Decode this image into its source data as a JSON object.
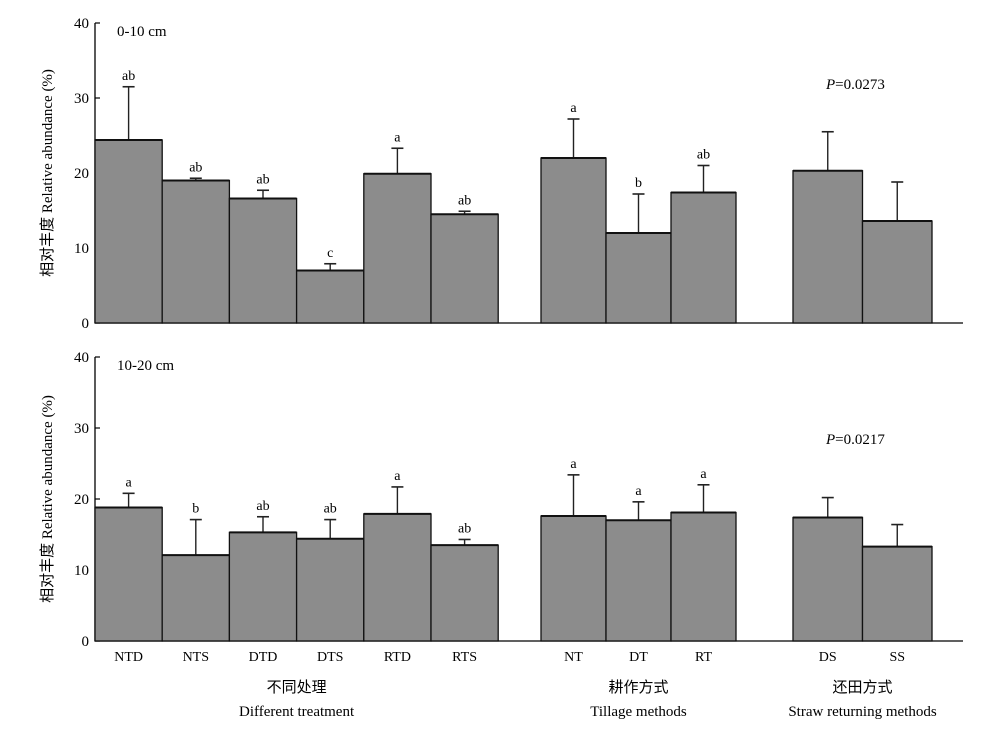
{
  "chart_data": [
    {
      "type": "bar",
      "panel_label": "0-10 cm",
      "ylabel": "相对丰度 Relative abundance (%)",
      "ylim": [
        0,
        40
      ],
      "yticks": [
        0,
        10,
        20,
        30,
        40
      ],
      "p_prefix": "P",
      "p_value": "=0.0273",
      "groups": [
        {
          "name_cn": "不同处理",
          "name_en": "Different treatment",
          "categories": [
            "NTD",
            "NTS",
            "DTD",
            "DTS",
            "RTD",
            "RTS"
          ],
          "values": [
            24.4,
            19.0,
            16.6,
            7.0,
            19.9,
            14.5
          ],
          "error": [
            7.1,
            0.3,
            1.1,
            0.9,
            3.4,
            0.4
          ],
          "letters": [
            "ab",
            "ab",
            "ab",
            "c",
            "a",
            "ab"
          ]
        },
        {
          "name_cn": "耕作方式",
          "name_en": "Tillage methods",
          "categories": [
            "NT",
            "DT",
            "RT"
          ],
          "values": [
            22.0,
            12.0,
            17.4
          ],
          "error": [
            5.2,
            5.2,
            3.6
          ],
          "letters": [
            "a",
            "b",
            "ab"
          ]
        },
        {
          "name_cn": "还田方式",
          "name_en": "Straw returning methods",
          "categories": [
            "DS",
            "SS"
          ],
          "values": [
            20.3,
            13.6
          ],
          "error": [
            5.2,
            5.2
          ],
          "letters": [
            "",
            ""
          ]
        }
      ]
    },
    {
      "type": "bar",
      "panel_label": "10-20 cm",
      "ylabel": "相对丰度 Relative abundance (%)",
      "ylim": [
        0,
        40
      ],
      "yticks": [
        0,
        10,
        20,
        30,
        40
      ],
      "p_prefix": "P",
      "p_value": "=0.0217",
      "groups": [
        {
          "name_cn": "不同处理",
          "name_en": "Different treatment",
          "categories": [
            "NTD",
            "NTS",
            "DTD",
            "DTS",
            "RTD",
            "RTS"
          ],
          "values": [
            18.8,
            12.1,
            15.3,
            14.4,
            17.9,
            13.5
          ],
          "error": [
            2.0,
            5.0,
            2.2,
            2.7,
            3.8,
            0.8
          ],
          "letters": [
            "a",
            "b",
            "ab",
            "ab",
            "a",
            "ab"
          ]
        },
        {
          "name_cn": "耕作方式",
          "name_en": "Tillage methods",
          "categories": [
            "NT",
            "DT",
            "RT"
          ],
          "values": [
            17.6,
            17.0,
            18.1
          ],
          "error": [
            5.8,
            2.6,
            3.9
          ],
          "letters": [
            "a",
            "a",
            "a"
          ]
        },
        {
          "name_cn": "还田方式",
          "name_en": "Straw returning methods",
          "categories": [
            "DS",
            "SS"
          ],
          "values": [
            17.4,
            13.3
          ],
          "error": [
            2.8,
            3.1
          ],
          "letters": [
            "",
            ""
          ]
        }
      ]
    }
  ],
  "colors": {
    "bar_fill": "#8c8c8c",
    "bar_stroke": "#111111",
    "axis": "#000000"
  }
}
